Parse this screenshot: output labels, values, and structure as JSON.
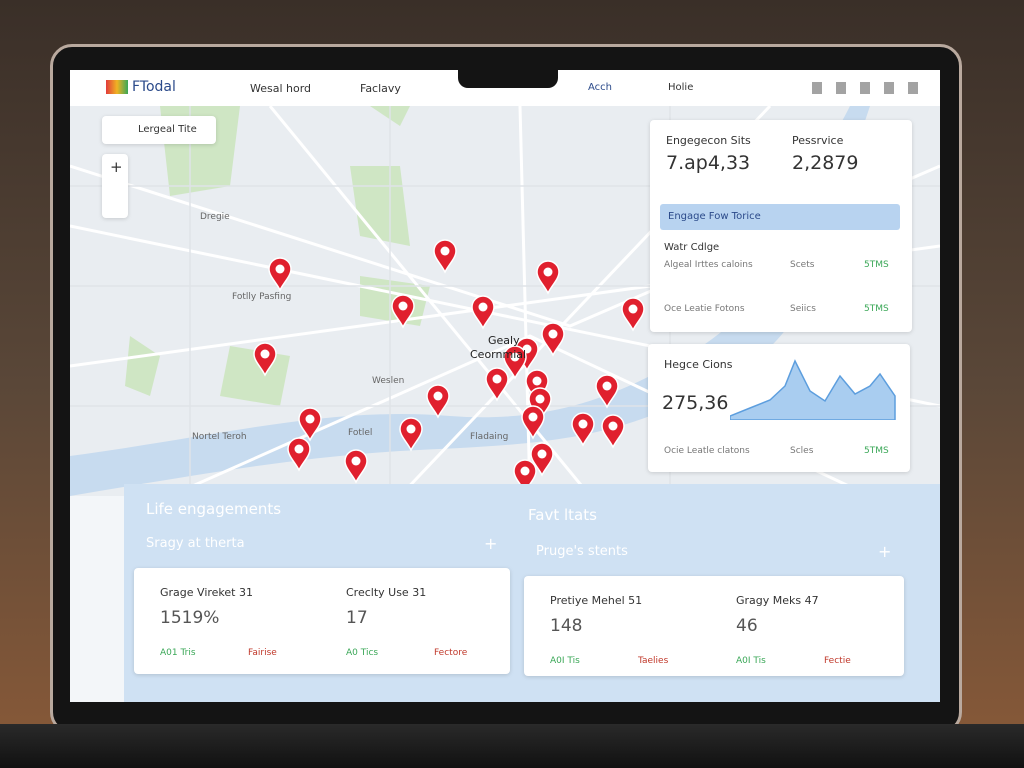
{
  "header": {
    "logo": "FTodal",
    "nav": [
      "Wesal hord",
      "Faclavy"
    ],
    "search": "Acch",
    "help": "Holie"
  },
  "map": {
    "search": "Lergeal Tite",
    "zoom": "+",
    "labels": [
      "Dregie",
      "Fotlly Pasfing",
      "Gealy",
      "Ceornmial",
      "Weslen",
      "Fotlel",
      "Fladaing",
      "Nortel Teroh"
    ]
  },
  "panel": {
    "stats": [
      {
        "label": "Engegecon Sits",
        "value": "7.ap4,33"
      },
      {
        "label": "Pessrvice",
        "value": "2,2879"
      }
    ],
    "banner": "Engage Fow Torice",
    "section": "Watr Cdlge",
    "rows": [
      {
        "name": "Algeal Irttes caloins",
        "kind": "Scets",
        "status": "5TMS"
      },
      {
        "name": "Oce Leatie Fotons",
        "kind": "Seiics",
        "status": "5TMS"
      }
    ],
    "trend": {
      "label": "Hegce Cions",
      "value": "275,36",
      "row": {
        "name": "Ocie Leatle clatons",
        "kind": "Scles",
        "status": "5TMS"
      }
    }
  },
  "bottom": {
    "left": {
      "title": "Life engagements",
      "subtitle": "Sragy at therta",
      "add": "+",
      "cards": [
        {
          "label": "Grage Vireket 31",
          "value": "1519%",
          "tag": "A01 Tris",
          "flag": "Fairise"
        },
        {
          "label": "Creclty Use 31",
          "value": "17",
          "tag": "A0 Tics",
          "flag": "Fectore"
        }
      ]
    },
    "right": {
      "title": "Favt ltats",
      "subtitle": "Pruge's stents",
      "add": "+",
      "cards": [
        {
          "label": "Pretiye Mehel 51",
          "value": "148",
          "tag": "A0I Tis",
          "flag": "Taelies"
        },
        {
          "label": "Gragy Meks 47",
          "value": "46",
          "tag": "A0I Tis",
          "flag": "Fectie"
        }
      ]
    }
  }
}
